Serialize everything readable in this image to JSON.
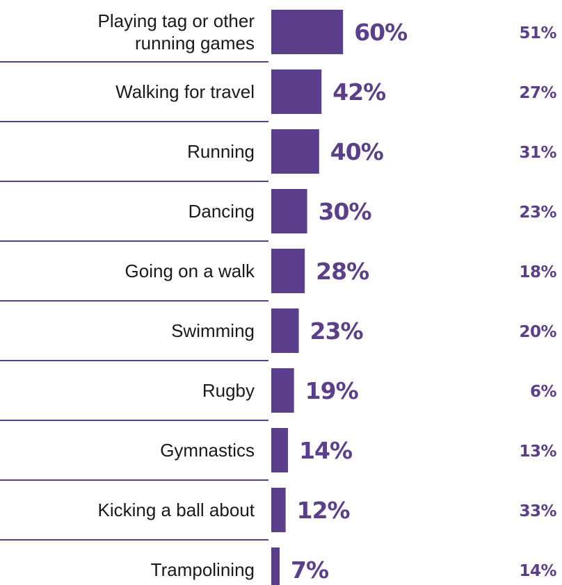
{
  "chart_data": {
    "type": "bar",
    "orientation": "horizontal",
    "categories": [
      [
        "Playing tag or other",
        "running games"
      ],
      [
        "Walking for travel"
      ],
      [
        "Running"
      ],
      [
        "Dancing"
      ],
      [
        "Going on a walk"
      ],
      [
        "Swimming"
      ],
      [
        "Rugby"
      ],
      [
        "Gymnastics"
      ],
      [
        "Kicking a ball about"
      ],
      [
        "Trampolining"
      ]
    ],
    "series": [
      {
        "values": [
          60,
          42,
          40,
          30,
          28,
          23,
          19,
          14,
          12,
          7
        ],
        "labels": [
          "60%",
          "42%",
          "40%",
          "30%",
          "28%",
          "23%",
          "19%",
          "14%",
          "12%",
          "7%"
        ]
      },
      {
        "values": [
          51,
          27,
          31,
          23,
          18,
          20,
          6,
          13,
          33,
          14
        ],
        "labels": [
          "51%",
          "27%",
          "31%",
          "23%",
          "18%",
          "20%",
          "6%",
          "13%",
          "33%",
          "14%"
        ]
      }
    ],
    "unit": "%",
    "xlim": [
      0,
      100
    ],
    "grid": false,
    "legend": "none",
    "colors": {
      "bar": "#5b3f8c",
      "series_1_label": "#5b3f8c",
      "series_2_label": "#5b3f8c",
      "divider": "#5b3f8c",
      "category_text": "#1a1a1a"
    }
  }
}
